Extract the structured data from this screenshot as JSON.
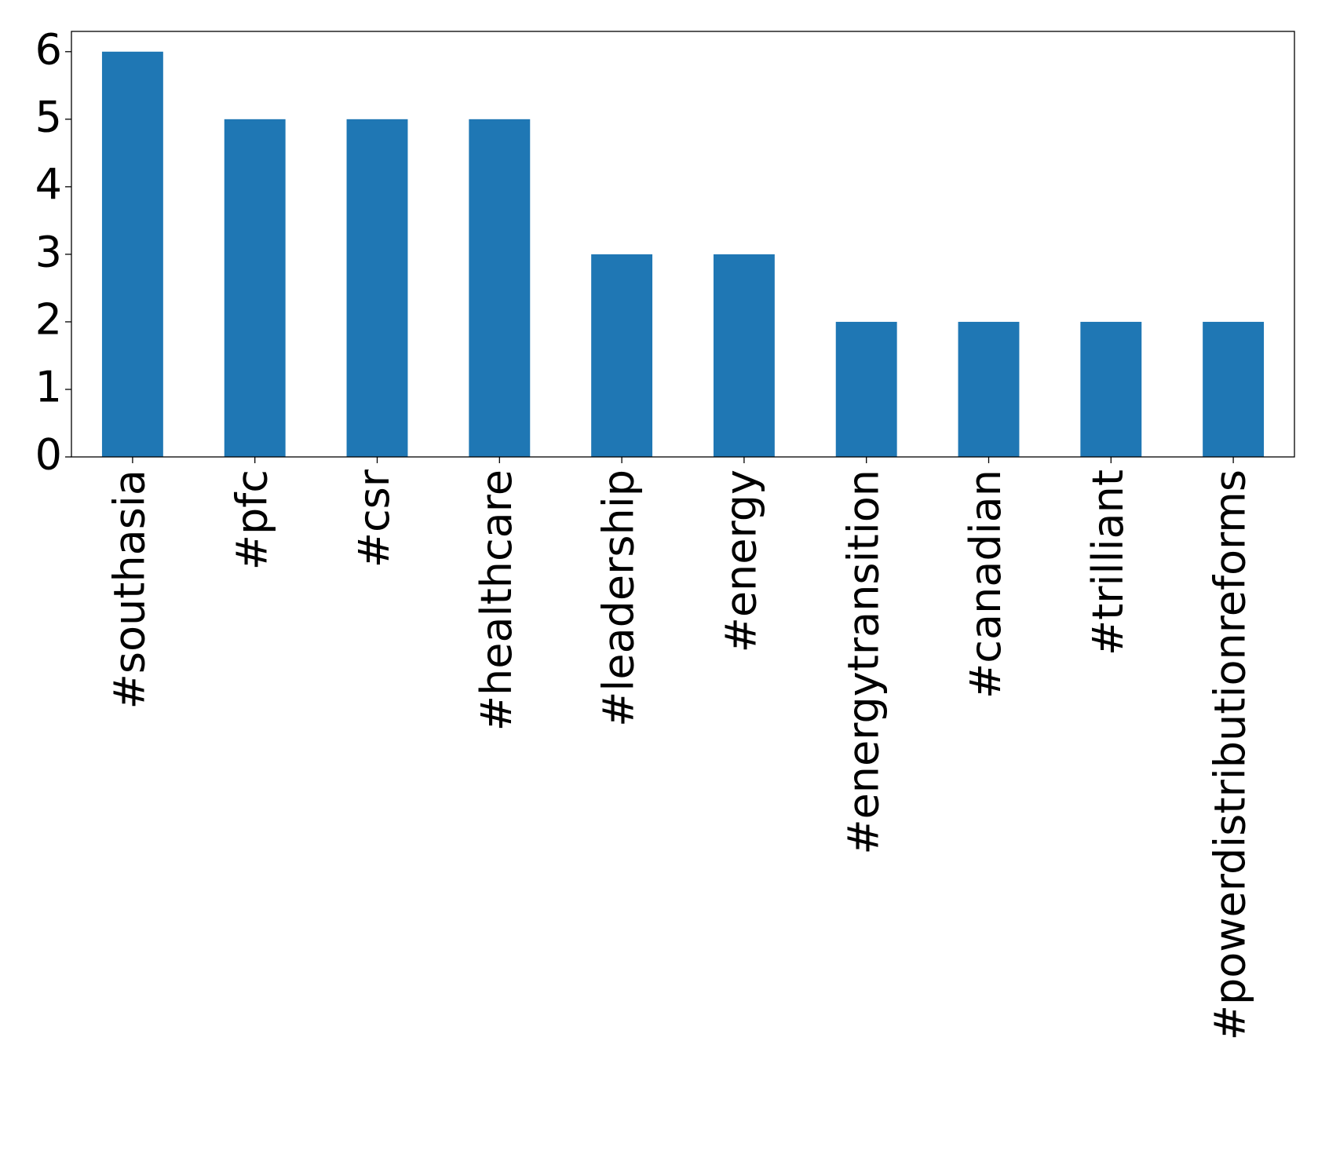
{
  "chart_data": {
    "type": "bar",
    "title": "",
    "xlabel": "",
    "ylabel": "",
    "categories": [
      "#southasia",
      "#pfc",
      "#csr",
      "#healthcare",
      "#leadership",
      "#energy",
      "#energytransition",
      "#canadian",
      "#trilliant",
      "#powerdistributionreforms"
    ],
    "values": [
      6,
      5,
      5,
      5,
      3,
      3,
      2,
      2,
      2,
      2
    ],
    "ylim": [
      0,
      6.3
    ],
    "yticks": [
      0,
      1,
      2,
      3,
      4,
      5,
      6
    ],
    "ytick_labels": [
      "0",
      "1",
      "2",
      "3",
      "4",
      "5",
      "6"
    ],
    "bar_color": "#1f77b4",
    "grid": false,
    "legend": "none"
  }
}
